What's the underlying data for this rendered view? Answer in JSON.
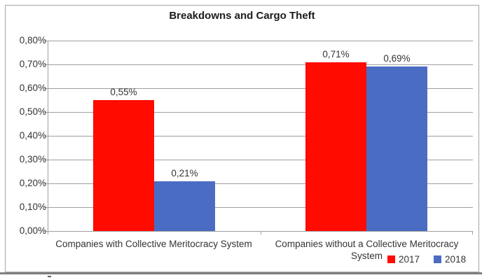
{
  "chart_data": {
    "type": "bar",
    "title": "Breakdowns and Cargo Theft",
    "categories": [
      "Companies with Collective Meritocracy System",
      "Companies without a Collective Meritocracy System"
    ],
    "series": [
      {
        "name": "2017",
        "color": "#ff0b00",
        "values": [
          0.55,
          0.71
        ]
      },
      {
        "name": "2018",
        "color": "#4a6cc3",
        "values": [
          0.21,
          0.69
        ]
      }
    ],
    "value_labels": [
      [
        "0,55%",
        "0,71%"
      ],
      [
        "0,21%",
        "0,69%"
      ]
    ],
    "xlabel": "",
    "ylabel": "",
    "ylim": [
      0,
      0.8
    ],
    "ytick_labels": [
      "0,00%",
      "0,10%",
      "0,20%",
      "0,30%",
      "0,40%",
      "0,50%",
      "0,60%",
      "0,70%",
      "0,80%"
    ],
    "grid": true,
    "legend_position": "bottom-right"
  },
  "colors": {
    "series_2017": "#ff0b00",
    "series_2018": "#4a6cc3",
    "gridline": "#9e9e9e",
    "frame_border": "#a6a6a6",
    "bottom_rule": "#7f7f7f",
    "text": "#333333"
  }
}
